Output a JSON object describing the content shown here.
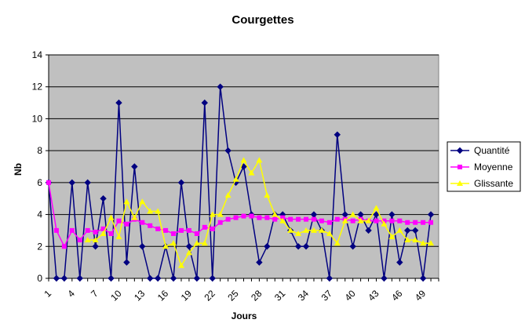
{
  "chart_data": {
    "type": "line",
    "title": "Courgettes",
    "xlabel": "Jours",
    "ylabel": "Nb",
    "ylim": [
      0,
      14
    ],
    "y_ticks": [
      0,
      2,
      4,
      6,
      8,
      10,
      12,
      14
    ],
    "x_ticks": [
      1,
      4,
      7,
      10,
      13,
      16,
      19,
      22,
      25,
      28,
      31,
      34,
      37,
      40,
      43,
      46,
      49
    ],
    "x": [
      1,
      2,
      3,
      4,
      5,
      6,
      7,
      8,
      9,
      10,
      11,
      12,
      13,
      14,
      15,
      16,
      17,
      18,
      19,
      20,
      21,
      22,
      23,
      24,
      25,
      26,
      27,
      28,
      29,
      30,
      31,
      32,
      33,
      34,
      35,
      36,
      37,
      38,
      39,
      40,
      41,
      42,
      43,
      44,
      45,
      46,
      47,
      48,
      49,
      50
    ],
    "grid": "horizontal",
    "legend_position": "right",
    "plot_background": "#c0c0c0",
    "series": [
      {
        "name": "Quantité",
        "color": "#000080",
        "marker": "diamond",
        "values": [
          6,
          0,
          0,
          6,
          0,
          6,
          2,
          5,
          0,
          11,
          1,
          7,
          2,
          0,
          0,
          2,
          0,
          6,
          2,
          0,
          11,
          0,
          12,
          8,
          6,
          7,
          4,
          1,
          2,
          4,
          4,
          3,
          2,
          2,
          4,
          3,
          0,
          9,
          4,
          2,
          4,
          3,
          4,
          0,
          4,
          1,
          3,
          3,
          0,
          4
        ]
      },
      {
        "name": "Moyenne",
        "color": "#ff00ff",
        "marker": "square",
        "values": [
          6,
          3,
          2,
          3,
          2.4,
          3,
          2.9,
          3.1,
          2.8,
          3.6,
          3.4,
          3.7,
          3.5,
          3.3,
          3.1,
          3,
          2.8,
          3,
          3,
          2.8,
          3.2,
          3.1,
          3.5,
          3.7,
          3.8,
          3.9,
          3.9,
          3.8,
          3.8,
          3.7,
          3.8,
          3.7,
          3.7,
          3.7,
          3.7,
          3.6,
          3.5,
          3.7,
          3.7,
          3.6,
          3.7,
          3.6,
          3.6,
          3.6,
          3.6,
          3.6,
          3.5,
          3.5,
          3.5,
          3.5
        ]
      },
      {
        "name": "Glissante",
        "color": "#ffff00",
        "marker": "triangle",
        "values": [
          null,
          null,
          null,
          null,
          null,
          2.4,
          2.4,
          2.8,
          3.8,
          2.6,
          4.8,
          3.8,
          4.8,
          4.2,
          4.2,
          2,
          2.2,
          0.8,
          1.6,
          2.2,
          2.2,
          4,
          4,
          5.2,
          6.2,
          7.4,
          6.6,
          7.4,
          5.2,
          4,
          3.6,
          3,
          2.8,
          3,
          3,
          3,
          2.8,
          2.2,
          3.6,
          4,
          3.6,
          3.6,
          4.4,
          3.4,
          2.6,
          3,
          2.4,
          2.4,
          2.2,
          2.2
        ]
      }
    ]
  }
}
